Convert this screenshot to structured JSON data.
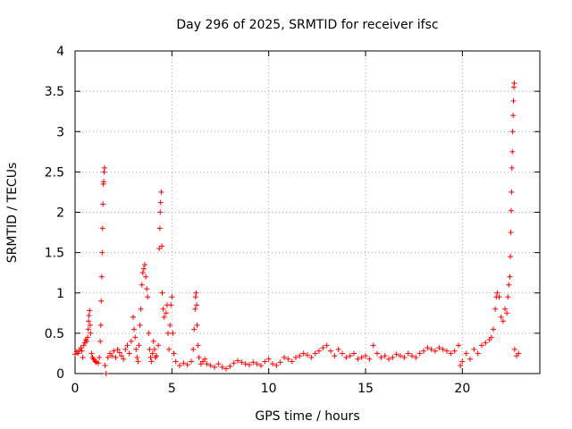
{
  "chart_data": {
    "type": "scatter",
    "title": "Day 296 of 2025, SRMTID for receiver ifsc",
    "xlabel": "GPS time / hours",
    "ylabel": "SRMTID / TECUs",
    "xlim": [
      0,
      24
    ],
    "ylim": [
      0,
      4
    ],
    "xticks": [
      0,
      5,
      10,
      15,
      20
    ],
    "xtick_labels": [
      "0",
      "5",
      "10",
      "15",
      "20"
    ],
    "yticks": [
      0,
      0.5,
      1,
      1.5,
      2,
      2.5,
      3,
      3.5,
      4
    ],
    "ytick_labels": [
      "0",
      "0.5",
      "1",
      "1.5",
      "2",
      "2.5",
      "3",
      "3.5",
      "4"
    ],
    "grid": true,
    "marker": "+",
    "color": "#ff0000",
    "series": [
      {
        "name": "SRMTID",
        "points": [
          [
            0.0,
            0.24
          ],
          [
            0.08,
            0.27
          ],
          [
            0.15,
            0.25
          ],
          [
            0.22,
            0.29
          ],
          [
            0.3,
            0.32
          ],
          [
            0.35,
            0.28
          ],
          [
            0.4,
            0.2
          ],
          [
            0.45,
            0.35
          ],
          [
            0.5,
            0.38
          ],
          [
            0.55,
            0.42
          ],
          [
            0.6,
            0.4
          ],
          [
            0.65,
            0.45
          ],
          [
            0.68,
            0.55
          ],
          [
            0.7,
            0.65
          ],
          [
            0.72,
            0.72
          ],
          [
            0.75,
            0.78
          ],
          [
            0.78,
            0.6
          ],
          [
            0.8,
            0.5
          ],
          [
            0.85,
            0.25
          ],
          [
            0.9,
            0.2
          ],
          [
            0.95,
            0.18
          ],
          [
            1.0,
            0.17
          ],
          [
            1.05,
            0.15
          ],
          [
            1.1,
            0.14
          ],
          [
            1.2,
            0.13
          ],
          [
            1.25,
            0.2
          ],
          [
            1.3,
            0.4
          ],
          [
            1.33,
            0.6
          ],
          [
            1.35,
            0.9
          ],
          [
            1.38,
            1.2
          ],
          [
            1.4,
            1.5
          ],
          [
            1.42,
            1.8
          ],
          [
            1.44,
            2.1
          ],
          [
            1.46,
            2.35
          ],
          [
            1.48,
            2.38
          ],
          [
            1.5,
            2.5
          ],
          [
            1.52,
            2.55
          ],
          [
            1.55,
            0.1
          ],
          [
            1.6,
            0.0
          ],
          [
            1.7,
            0.2
          ],
          [
            1.8,
            0.25
          ],
          [
            1.9,
            0.22
          ],
          [
            2.0,
            0.28
          ],
          [
            2.1,
            0.2
          ],
          [
            2.2,
            0.3
          ],
          [
            2.3,
            0.26
          ],
          [
            2.4,
            0.22
          ],
          [
            2.5,
            0.18
          ],
          [
            2.6,
            0.3
          ],
          [
            2.7,
            0.35
          ],
          [
            2.8,
            0.25
          ],
          [
            2.9,
            0.4
          ],
          [
            3.0,
            0.7
          ],
          [
            3.05,
            0.55
          ],
          [
            3.1,
            0.45
          ],
          [
            3.15,
            0.3
          ],
          [
            3.2,
            0.2
          ],
          [
            3.25,
            0.15
          ],
          [
            3.3,
            0.35
          ],
          [
            3.35,
            0.6
          ],
          [
            3.4,
            0.8
          ],
          [
            3.45,
            1.1
          ],
          [
            3.5,
            1.25
          ],
          [
            3.55,
            1.3
          ],
          [
            3.6,
            1.35
          ],
          [
            3.65,
            1.2
          ],
          [
            3.7,
            1.05
          ],
          [
            3.75,
            0.95
          ],
          [
            3.8,
            0.5
          ],
          [
            3.85,
            0.3
          ],
          [
            3.9,
            0.2
          ],
          [
            3.95,
            0.15
          ],
          [
            4.0,
            0.25
          ],
          [
            4.05,
            0.4
          ],
          [
            4.1,
            0.3
          ],
          [
            4.15,
            0.2
          ],
          [
            4.2,
            0.22
          ],
          [
            4.3,
            0.35
          ],
          [
            4.35,
            1.55
          ],
          [
            4.38,
            1.8
          ],
          [
            4.4,
            2.0
          ],
          [
            4.42,
            2.12
          ],
          [
            4.45,
            2.25
          ],
          [
            4.48,
            1.58
          ],
          [
            4.5,
            1.0
          ],
          [
            4.55,
            0.8
          ],
          [
            4.6,
            0.7
          ],
          [
            4.7,
            0.75
          ],
          [
            4.75,
            0.85
          ],
          [
            4.8,
            0.5
          ],
          [
            4.85,
            0.3
          ],
          [
            4.9,
            0.6
          ],
          [
            4.95,
            0.85
          ],
          [
            5.0,
            0.95
          ],
          [
            5.05,
            0.5
          ],
          [
            5.1,
            0.25
          ],
          [
            5.2,
            0.15
          ],
          [
            5.4,
            0.1
          ],
          [
            5.6,
            0.13
          ],
          [
            5.8,
            0.11
          ],
          [
            6.0,
            0.15
          ],
          [
            6.1,
            0.3
          ],
          [
            6.15,
            0.55
          ],
          [
            6.2,
            0.8
          ],
          [
            6.22,
            0.95
          ],
          [
            6.25,
            1.0
          ],
          [
            6.28,
            0.85
          ],
          [
            6.3,
            0.6
          ],
          [
            6.35,
            0.35
          ],
          [
            6.4,
            0.2
          ],
          [
            6.5,
            0.12
          ],
          [
            6.6,
            0.15
          ],
          [
            6.7,
            0.18
          ],
          [
            6.8,
            0.12
          ],
          [
            7.0,
            0.1
          ],
          [
            7.2,
            0.08
          ],
          [
            7.4,
            0.12
          ],
          [
            7.6,
            0.08
          ],
          [
            7.8,
            0.06
          ],
          [
            8.0,
            0.09
          ],
          [
            8.2,
            0.13
          ],
          [
            8.4,
            0.16
          ],
          [
            8.6,
            0.14
          ],
          [
            8.8,
            0.12
          ],
          [
            9.0,
            0.11
          ],
          [
            9.2,
            0.14
          ],
          [
            9.4,
            0.12
          ],
          [
            9.6,
            0.1
          ],
          [
            9.8,
            0.15
          ],
          [
            10.0,
            0.18
          ],
          [
            10.2,
            0.12
          ],
          [
            10.4,
            0.1
          ],
          [
            10.6,
            0.14
          ],
          [
            10.8,
            0.2
          ],
          [
            11.0,
            0.18
          ],
          [
            11.2,
            0.15
          ],
          [
            11.4,
            0.2
          ],
          [
            11.6,
            0.22
          ],
          [
            11.8,
            0.25
          ],
          [
            12.0,
            0.23
          ],
          [
            12.2,
            0.2
          ],
          [
            12.4,
            0.25
          ],
          [
            12.6,
            0.28
          ],
          [
            12.8,
            0.32
          ],
          [
            13.0,
            0.35
          ],
          [
            13.2,
            0.28
          ],
          [
            13.4,
            0.22
          ],
          [
            13.6,
            0.3
          ],
          [
            13.8,
            0.25
          ],
          [
            14.0,
            0.2
          ],
          [
            14.2,
            0.22
          ],
          [
            14.4,
            0.25
          ],
          [
            14.6,
            0.18
          ],
          [
            14.8,
            0.2
          ],
          [
            15.0,
            0.22
          ],
          [
            15.2,
            0.18
          ],
          [
            15.4,
            0.35
          ],
          [
            15.6,
            0.25
          ],
          [
            15.8,
            0.2
          ],
          [
            16.0,
            0.22
          ],
          [
            16.2,
            0.18
          ],
          [
            16.4,
            0.2
          ],
          [
            16.6,
            0.24
          ],
          [
            16.8,
            0.22
          ],
          [
            17.0,
            0.2
          ],
          [
            17.2,
            0.25
          ],
          [
            17.4,
            0.22
          ],
          [
            17.6,
            0.2
          ],
          [
            17.8,
            0.25
          ],
          [
            18.0,
            0.28
          ],
          [
            18.2,
            0.32
          ],
          [
            18.4,
            0.3
          ],
          [
            18.6,
            0.28
          ],
          [
            18.8,
            0.32
          ],
          [
            19.0,
            0.3
          ],
          [
            19.2,
            0.28
          ],
          [
            19.4,
            0.25
          ],
          [
            19.6,
            0.28
          ],
          [
            19.8,
            0.35
          ],
          [
            19.9,
            0.1
          ],
          [
            20.0,
            0.15
          ],
          [
            20.2,
            0.25
          ],
          [
            20.4,
            0.18
          ],
          [
            20.6,
            0.3
          ],
          [
            20.8,
            0.25
          ],
          [
            21.0,
            0.35
          ],
          [
            21.2,
            0.38
          ],
          [
            21.4,
            0.42
          ],
          [
            21.5,
            0.45
          ],
          [
            21.6,
            0.55
          ],
          [
            21.7,
            0.8
          ],
          [
            21.75,
            0.95
          ],
          [
            21.8,
            1.0
          ],
          [
            21.9,
            0.95
          ],
          [
            22.0,
            0.7
          ],
          [
            22.1,
            0.65
          ],
          [
            22.2,
            0.8
          ],
          [
            22.3,
            0.75
          ],
          [
            22.35,
            0.95
          ],
          [
            22.4,
            1.1
          ],
          [
            22.45,
            1.2
          ],
          [
            22.48,
            1.45
          ],
          [
            22.5,
            1.75
          ],
          [
            22.52,
            2.02
          ],
          [
            22.54,
            2.25
          ],
          [
            22.56,
            2.55
          ],
          [
            22.58,
            2.75
          ],
          [
            22.6,
            3.0
          ],
          [
            22.62,
            3.2
          ],
          [
            22.64,
            3.38
          ],
          [
            22.66,
            3.55
          ],
          [
            22.68,
            3.6
          ],
          [
            22.7,
            0.3
          ],
          [
            22.8,
            0.22
          ],
          [
            22.9,
            0.25
          ]
        ]
      }
    ]
  }
}
